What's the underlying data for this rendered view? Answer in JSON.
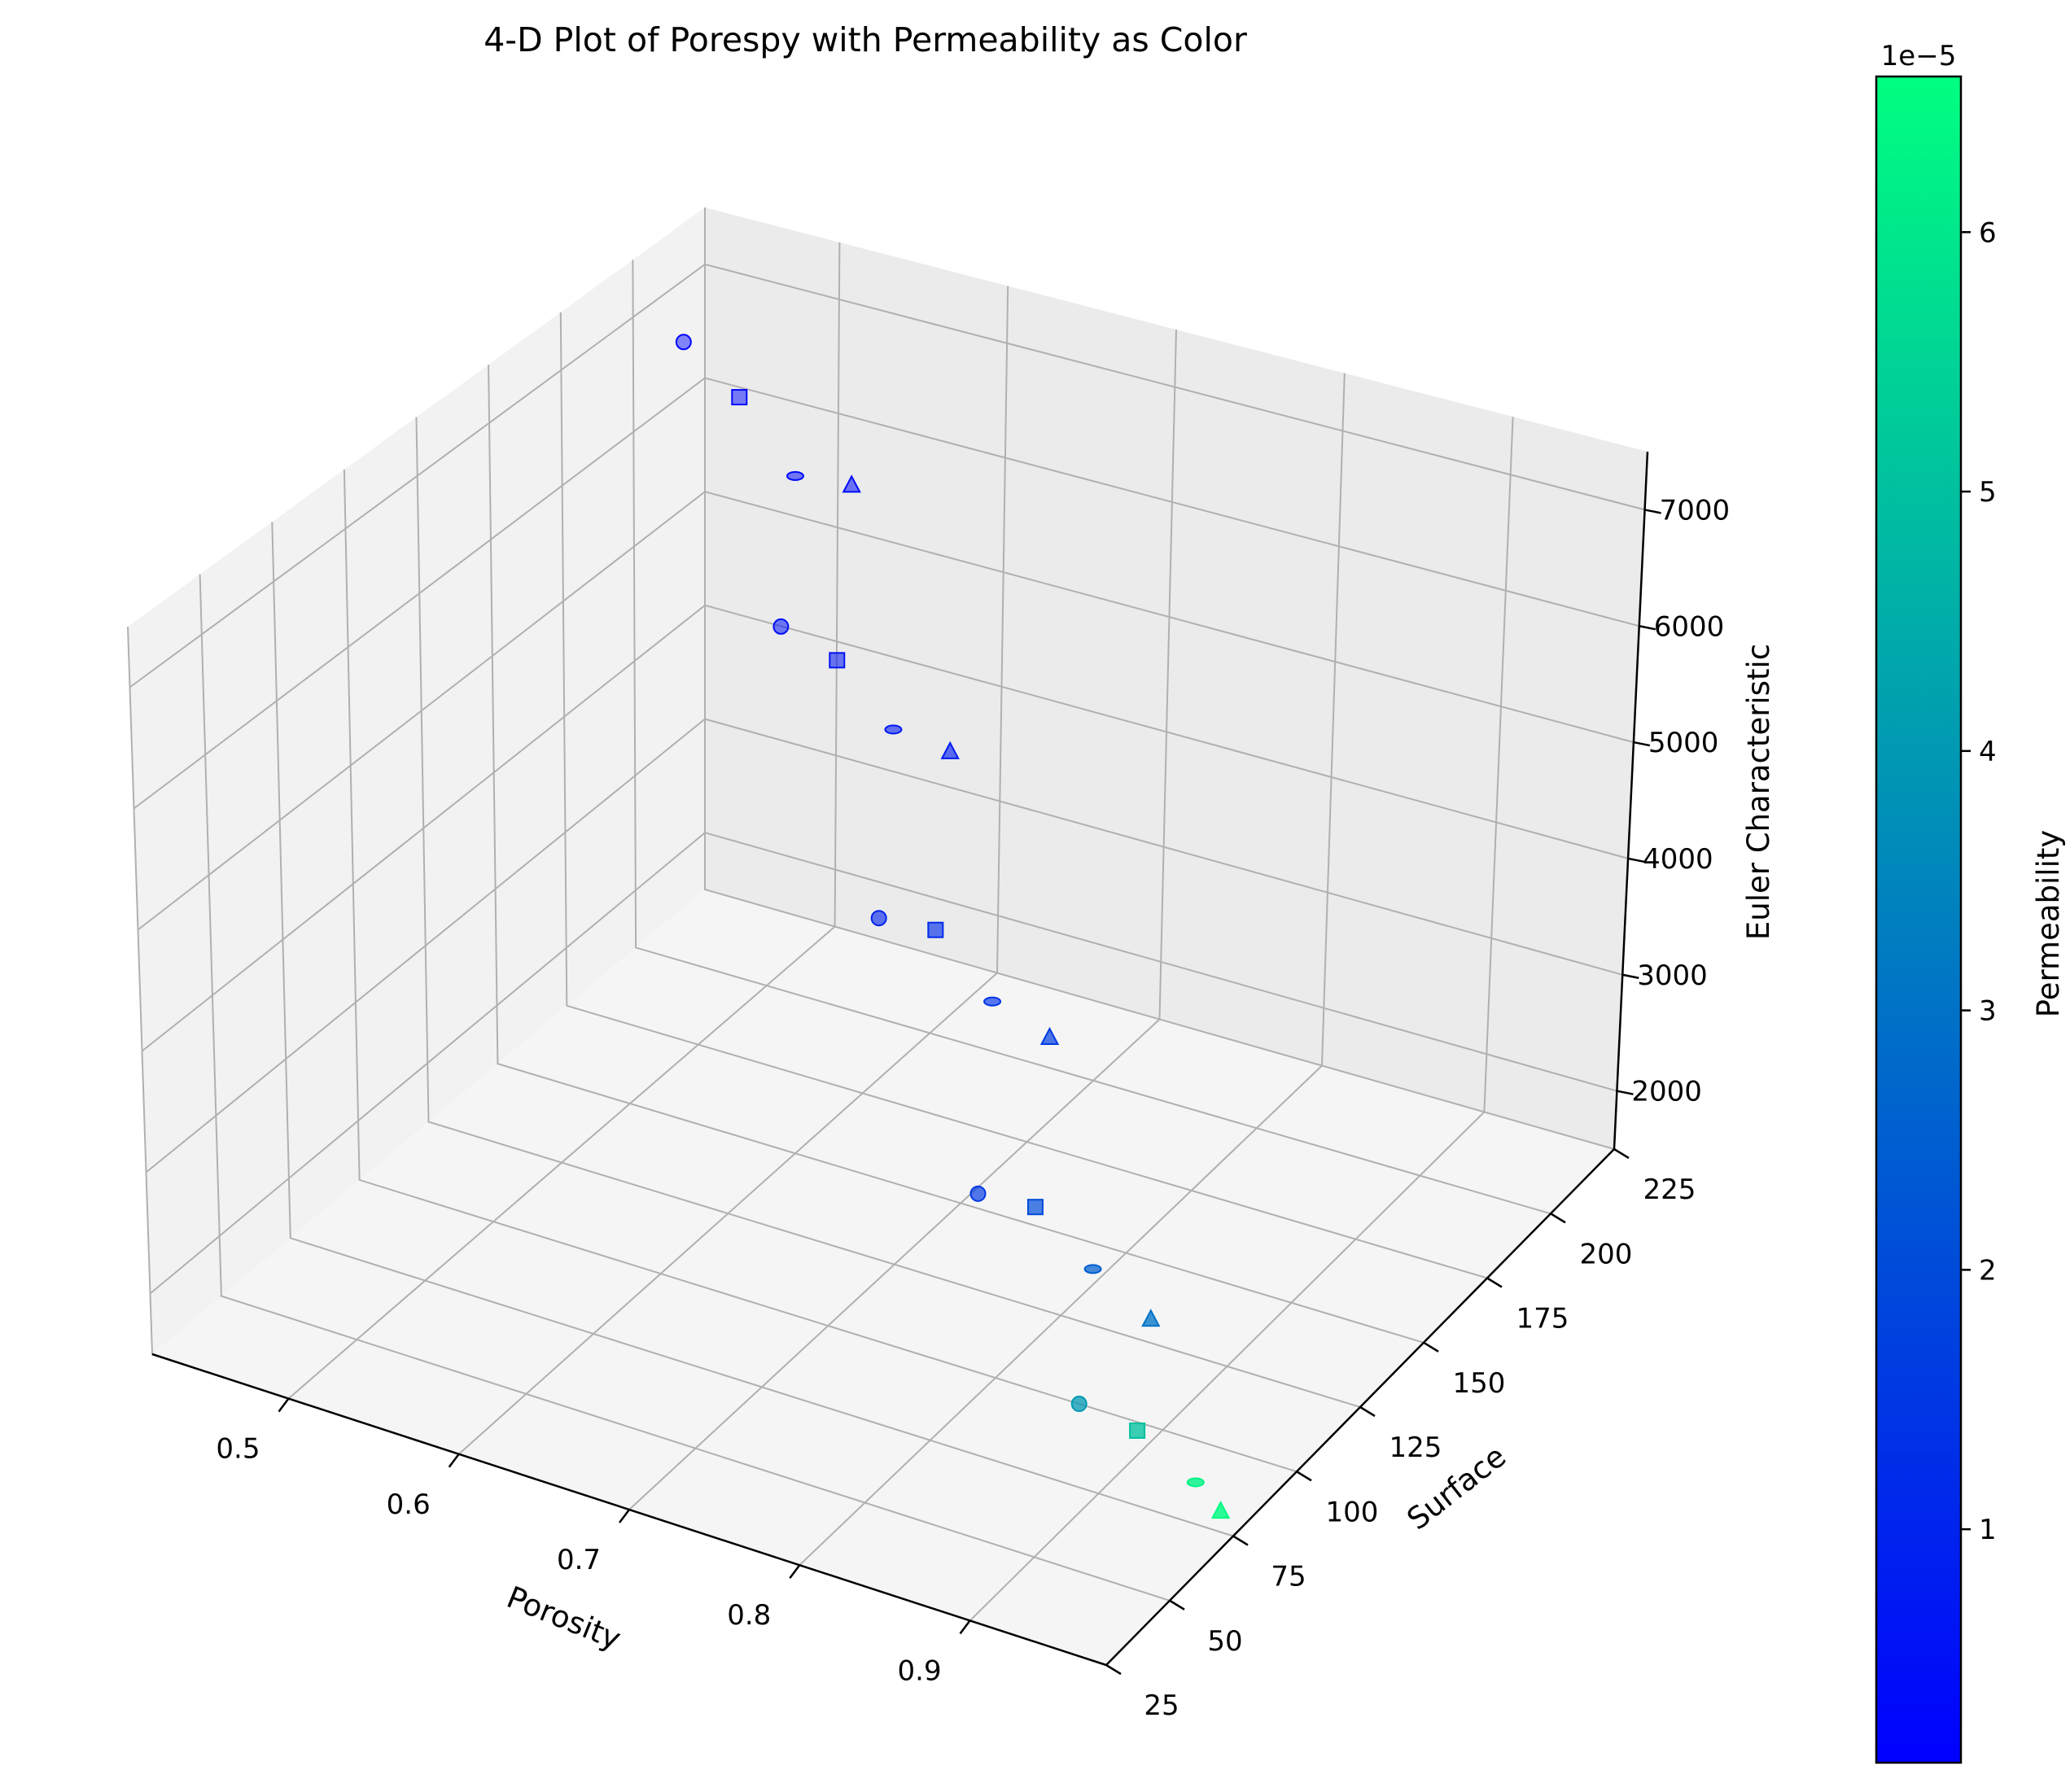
{
  "chart_data": {
    "type": "scatter",
    "title": "4-D Plot of Porespy with Permeability as Color",
    "xlabel": "Porosity",
    "ylabel": "Surface",
    "zlabel": "Euler Characteristic",
    "colorbar_label": "Permeability",
    "colorbar_offset": "1e−5",
    "colormap": "winter",
    "colormap_colors": [
      "#0000ff",
      "#00ff80"
    ],
    "xlim": [
      0.42,
      0.98
    ],
    "ylim": [
      25,
      225
    ],
    "zlim": [
      1500,
      7500
    ],
    "clim": [
      0.1,
      6.6
    ],
    "x_ticks": [
      "0.5",
      "0.6",
      "0.7",
      "0.8",
      "0.9"
    ],
    "y_ticks": [
      "25",
      "50",
      "75",
      "100",
      "125",
      "150",
      "175",
      "200",
      "225"
    ],
    "z_ticks": [
      "2000",
      "3000",
      "4000",
      "5000",
      "6000",
      "7000"
    ],
    "colorbar_ticks": [
      "1",
      "2",
      "3",
      "4",
      "5",
      "6"
    ],
    "grid": true,
    "series": [
      {
        "marker": "circle",
        "points": [
          {
            "x": 0.45,
            "y": 200,
            "z": 6900,
            "perm": 0.25
          },
          {
            "x": 0.55,
            "y": 175,
            "z": 5300,
            "perm": 0.5
          },
          {
            "x": 0.65,
            "y": 150,
            "z": 3700,
            "perm": 1.0
          },
          {
            "x": 0.75,
            "y": 125,
            "z": 2300,
            "perm": 1.5
          },
          {
            "x": 0.85,
            "y": 100,
            "z": 1500,
            "perm": 4.0
          }
        ]
      },
      {
        "marker": "square",
        "points": [
          {
            "x": 0.5,
            "y": 190,
            "z": 6800,
            "perm": 0.3
          },
          {
            "x": 0.6,
            "y": 165,
            "z": 5400,
            "perm": 0.6
          },
          {
            "x": 0.7,
            "y": 140,
            "z": 4000,
            "perm": 1.2
          },
          {
            "x": 0.8,
            "y": 115,
            "z": 2600,
            "perm": 2.0
          },
          {
            "x": 0.9,
            "y": 90,
            "z": 1700,
            "perm": 5.0
          }
        ]
      },
      {
        "marker": "ellipse",
        "points": [
          {
            "x": 0.55,
            "y": 180,
            "z": 6500,
            "perm": 0.35
          },
          {
            "x": 0.65,
            "y": 155,
            "z": 5200,
            "perm": 0.7
          },
          {
            "x": 0.75,
            "y": 130,
            "z": 3800,
            "perm": 1.4
          },
          {
            "x": 0.85,
            "y": 105,
            "z": 2500,
            "perm": 2.5
          },
          {
            "x": 0.95,
            "y": 80,
            "z": 1700,
            "perm": 6.3
          }
        ]
      },
      {
        "marker": "triangle",
        "points": [
          {
            "x": 0.6,
            "y": 170,
            "z": 6800,
            "perm": 0.4
          },
          {
            "x": 0.7,
            "y": 145,
            "z": 5400,
            "perm": 0.8
          },
          {
            "x": 0.8,
            "y": 120,
            "z": 3900,
            "perm": 1.6
          },
          {
            "x": 0.9,
            "y": 95,
            "z": 2500,
            "perm": 3.0
          },
          {
            "x": 0.98,
            "y": 70,
            "z": 1800,
            "perm": 6.5
          }
        ]
      }
    ]
  }
}
